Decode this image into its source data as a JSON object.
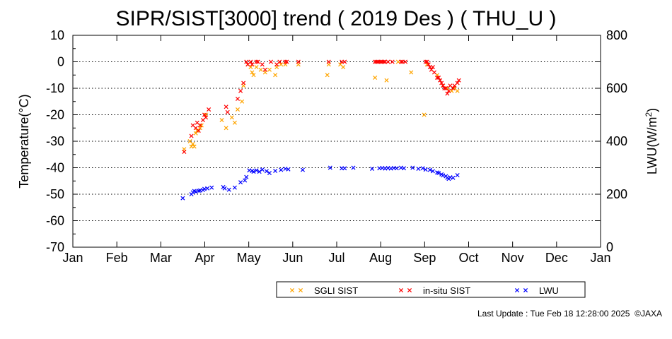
{
  "chart_data": {
    "type": "scatter",
    "title": "SIPR/SIST[3000] trend ( 2019 Des ) ( THU_U )",
    "ylabel": "Temperature(°C)",
    "y2label_main": "LWU(W/m",
    "y2label_sup": "2",
    "y2label_end": ")",
    "ylim": [
      -70,
      10
    ],
    "y2lim": [
      0,
      800
    ],
    "yticks": [
      "10",
      "0",
      "-10",
      "-20",
      "-30",
      "-40",
      "-50",
      "-60",
      "-70"
    ],
    "y2ticks": [
      "800",
      "600",
      "400",
      "200",
      "0"
    ],
    "x_months": [
      "Jan",
      "Feb",
      "Mar",
      "Apr",
      "May",
      "Jun",
      "Jul",
      "Aug",
      "Sep",
      "Oct",
      "Nov",
      "Dec",
      "Jan"
    ],
    "x_unit": "day of year",
    "grid": "dotted horizontal every 10 °C",
    "legend_placement": "bottom-right",
    "series": [
      {
        "name": "SGLI SIST",
        "color": "#ffa500",
        "axis": "left",
        "points": [
          [
            77,
            -33
          ],
          [
            81,
            -30
          ],
          [
            82,
            -32
          ],
          [
            83,
            -31
          ],
          [
            84,
            -32
          ],
          [
            85,
            -27
          ],
          [
            86,
            -26
          ],
          [
            88,
            -25
          ],
          [
            89,
            -24
          ],
          [
            92,
            -20
          ],
          [
            103,
            -22
          ],
          [
            106,
            -25
          ],
          [
            110,
            -21
          ],
          [
            112,
            -23
          ],
          [
            114,
            -18
          ],
          [
            117,
            -15
          ],
          [
            118,
            -9
          ],
          [
            121,
            -1
          ],
          [
            123,
            -2
          ],
          [
            124,
            -4
          ],
          [
            125,
            -5
          ],
          [
            127,
            -2
          ],
          [
            130,
            -3
          ],
          [
            133,
            -4
          ],
          [
            136,
            -3
          ],
          [
            140,
            -5
          ],
          [
            141,
            -2
          ],
          [
            144,
            -1
          ],
          [
            147,
            -1
          ],
          [
            156,
            -1
          ],
          [
            176,
            -5
          ],
          [
            177,
            -1
          ],
          [
            185,
            -1
          ],
          [
            187,
            -2
          ],
          [
            209,
            -6
          ],
          [
            217,
            -7
          ],
          [
            225,
            0
          ],
          [
            234,
            -4
          ],
          [
            243,
            -20
          ],
          [
            245,
            -1
          ],
          [
            252,
            -5
          ],
          [
            256,
            -9
          ],
          [
            259,
            -10
          ],
          [
            262,
            -11
          ],
          [
            264,
            -10
          ],
          [
            266,
            -11
          ]
        ]
      },
      {
        "name": "in-situ SIST",
        "color": "#ff0000",
        "axis": "left",
        "points": [
          [
            77,
            -34
          ],
          [
            82,
            -28
          ],
          [
            83,
            -24
          ],
          [
            85,
            -25
          ],
          [
            86,
            -23
          ],
          [
            87,
            -26
          ],
          [
            88,
            -24
          ],
          [
            90,
            -22
          ],
          [
            91,
            -20
          ],
          [
            92,
            -21
          ],
          [
            94,
            -18
          ],
          [
            106,
            -17
          ],
          [
            107,
            -19
          ],
          [
            114,
            -14
          ],
          [
            116,
            -11
          ],
          [
            118,
            -8
          ],
          [
            120,
            0
          ],
          [
            121,
            -1
          ],
          [
            123,
            0
          ],
          [
            124,
            -1
          ],
          [
            127,
            0
          ],
          [
            128,
            0
          ],
          [
            131,
            -1
          ],
          [
            133,
            -3
          ],
          [
            137,
            0
          ],
          [
            141,
            -1
          ],
          [
            143,
            0
          ],
          [
            147,
            0
          ],
          [
            148,
            0
          ],
          [
            156,
            0
          ],
          [
            177,
            0
          ],
          [
            186,
            0
          ],
          [
            188,
            0
          ],
          [
            209,
            0
          ],
          [
            210,
            0
          ],
          [
            211,
            0
          ],
          [
            212,
            0
          ],
          [
            213,
            0
          ],
          [
            214,
            0
          ],
          [
            215,
            0
          ],
          [
            216,
            0
          ],
          [
            218,
            0
          ],
          [
            221,
            0
          ],
          [
            227,
            0
          ],
          [
            228,
            0
          ],
          [
            230,
            0
          ],
          [
            244,
            0
          ],
          [
            245,
            0
          ],
          [
            246,
            -1
          ],
          [
            247,
            -2
          ],
          [
            248,
            -3
          ],
          [
            249,
            -2
          ],
          [
            250,
            -4
          ],
          [
            252,
            -6
          ],
          [
            253,
            -6
          ],
          [
            254,
            -7
          ],
          [
            255,
            -8
          ],
          [
            256,
            -9
          ],
          [
            257,
            -10
          ],
          [
            258,
            -10
          ],
          [
            259,
            -12
          ],
          [
            260,
            -11
          ],
          [
            261,
            -9
          ],
          [
            263,
            -10
          ],
          [
            264,
            -9
          ],
          [
            266,
            -8
          ],
          [
            267,
            -7
          ]
        ]
      },
      {
        "name": "LWU",
        "color": "#0000ff",
        "axis": "right",
        "points": [
          [
            76,
            185
          ],
          [
            82,
            200
          ],
          [
            83,
            207
          ],
          [
            84,
            212
          ],
          [
            85,
            210
          ],
          [
            87,
            213
          ],
          [
            88,
            214
          ],
          [
            90,
            216
          ],
          [
            91,
            220
          ],
          [
            93,
            222
          ],
          [
            96,
            225
          ],
          [
            104,
            227
          ],
          [
            105,
            222
          ],
          [
            108,
            217
          ],
          [
            112,
            225
          ],
          [
            116,
            245
          ],
          [
            119,
            252
          ],
          [
            120,
            265
          ],
          [
            122,
            290
          ],
          [
            124,
            288
          ],
          [
            125,
            285
          ],
          [
            127,
            290
          ],
          [
            129,
            285
          ],
          [
            131,
            293
          ],
          [
            134,
            287
          ],
          [
            136,
            280
          ],
          [
            140,
            288
          ],
          [
            144,
            292
          ],
          [
            147,
            296
          ],
          [
            149,
            294
          ],
          [
            159,
            292
          ],
          [
            178,
            300
          ],
          [
            186,
            298
          ],
          [
            188,
            298
          ],
          [
            194,
            300
          ],
          [
            207,
            296
          ],
          [
            212,
            298
          ],
          [
            214,
            299
          ],
          [
            216,
            297
          ],
          [
            218,
            299
          ],
          [
            220,
            297
          ],
          [
            222,
            299
          ],
          [
            224,
            298
          ],
          [
            227,
            300
          ],
          [
            229,
            298
          ],
          [
            235,
            300
          ],
          [
            239,
            296
          ],
          [
            242,
            298
          ],
          [
            244,
            293
          ],
          [
            247,
            292
          ],
          [
            249,
            287
          ],
          [
            252,
            282
          ],
          [
            253,
            280
          ],
          [
            255,
            275
          ],
          [
            256,
            271
          ],
          [
            258,
            268
          ],
          [
            259,
            262
          ],
          [
            260,
            258
          ],
          [
            261,
            264
          ],
          [
            263,
            262
          ],
          [
            266,
            272
          ]
        ]
      }
    ]
  },
  "footer": {
    "last_update": "Last Update : Tue Feb 18 12:28:00 2025",
    "copyright": "©JAXA"
  }
}
